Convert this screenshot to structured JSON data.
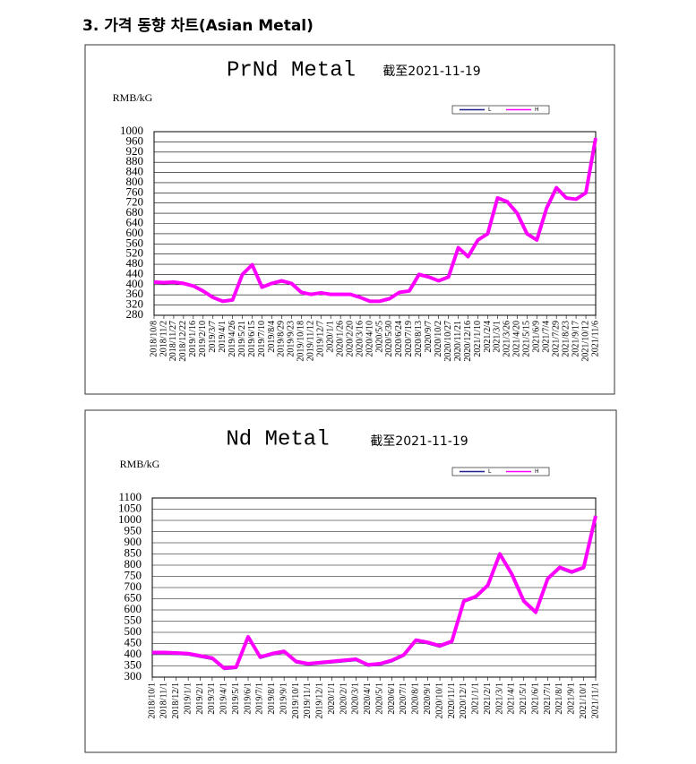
{
  "heading": "3. 가격 동향 차트(Asian Metal)",
  "chart_data": [
    {
      "type": "line",
      "title": "PrNd Metal",
      "subtitle": "截至2021-11-19",
      "y_label": "RMB/kG",
      "categories": [
        "2018/10/8",
        "2018/11/2",
        "2018/11/27",
        "2018/12/22",
        "2019/1/16",
        "2019/2/10",
        "2019/3/7",
        "2019/4/1",
        "2019/4/26",
        "2019/5/21",
        "2019/6/15",
        "2019/7/10",
        "2019/8/4",
        "2019/8/29",
        "2019/9/23",
        "2019/10/18",
        "2019/11/12",
        "2019/12/7",
        "2020/1/1",
        "2020/1/26",
        "2020/2/20",
        "2020/3/16",
        "2020/4/10",
        "2020/5/5",
        "2020/5/30",
        "2020/6/24",
        "2020/7/19",
        "2020/8/13",
        "2020/9/7",
        "2020/10/2",
        "2020/10/27",
        "2020/11/21",
        "2020/12/16",
        "2021/1/10",
        "2021/2/4",
        "2021/3/1",
        "2021/3/26",
        "2021/4/20",
        "2021/5/15",
        "2021/6/9",
        "2021/7/4",
        "2021/7/29",
        "2021/8/23",
        "2021/9/17",
        "2021/10/12",
        "2021/11/6"
      ],
      "series": [
        {
          "name": "L",
          "color": "#1f1f8f",
          "values": [
            408,
            406,
            408,
            403,
            393,
            373,
            348,
            333,
            338,
            438,
            476,
            388,
            403,
            413,
            403,
            368,
            360,
            366,
            360,
            360,
            360,
            348,
            333,
            333,
            343,
            368,
            373,
            438,
            428,
            413,
            428,
            543,
            508,
            573,
            598,
            738,
            723,
            678,
            598,
            573,
            698,
            778,
            738,
            733,
            758,
            965
          ]
        },
        {
          "name": "H",
          "color": "#ff00ff",
          "values": [
            410,
            408,
            410,
            405,
            395,
            375,
            350,
            335,
            340,
            440,
            478,
            390,
            405,
            415,
            405,
            370,
            362,
            368,
            362,
            362,
            362,
            350,
            335,
            335,
            345,
            370,
            375,
            440,
            430,
            415,
            430,
            545,
            510,
            575,
            600,
            740,
            725,
            680,
            600,
            575,
            700,
            780,
            740,
            735,
            760,
            975
          ]
        }
      ],
      "ylim": [
        280,
        1000
      ],
      "yticks": [
        280,
        320,
        360,
        400,
        440,
        480,
        520,
        560,
        600,
        640,
        680,
        720,
        760,
        800,
        840,
        880,
        920,
        960,
        1000
      ],
      "grid": true
    },
    {
      "type": "line",
      "title": "Nd Metal",
      "subtitle": "截至2021-11-19",
      "y_label": "RMB/kG",
      "categories": [
        "2018/10/1",
        "2018/11/1",
        "2018/12/1",
        "2019/1/1",
        "2019/2/1",
        "2019/3/1",
        "2019/4/1",
        "2019/5/1",
        "2019/6/1",
        "2019/7/1",
        "2019/8/1",
        "2019/9/1",
        "2019/10/1",
        "2019/11/1",
        "2019/12/1",
        "2020/1/1",
        "2020/2/1",
        "2020/3/1",
        "2020/4/1",
        "2020/5/1",
        "2020/6/1",
        "2020/7/1",
        "2020/8/1",
        "2020/9/1",
        "2020/10/1",
        "2020/11/1",
        "2020/12/1",
        "2021/1/1",
        "2021/2/1",
        "2021/3/1",
        "2021/4/1",
        "2021/5/1",
        "2021/6/1",
        "2021/7/1",
        "2021/8/1",
        "2021/9/1",
        "2021/10/1",
        "2021/11/1"
      ],
      "series": [
        {
          "name": "L",
          "color": "#1f1f8f",
          "values": [
            405,
            405,
            403,
            400,
            390,
            380,
            335,
            340,
            475,
            385,
            400,
            410,
            365,
            355,
            360,
            365,
            370,
            375,
            350,
            355,
            370,
            395,
            460,
            450,
            435,
            455,
            635,
            655,
            705,
            845,
            755,
            635,
            585,
            735,
            785,
            765,
            785,
            1010
          ]
        },
        {
          "name": "H",
          "color": "#ff00ff",
          "values": [
            410,
            410,
            408,
            405,
            395,
            385,
            340,
            345,
            480,
            390,
            405,
            415,
            370,
            360,
            365,
            370,
            375,
            380,
            355,
            360,
            375,
            400,
            465,
            455,
            440,
            460,
            640,
            660,
            710,
            850,
            760,
            640,
            590,
            740,
            790,
            770,
            790,
            1020
          ]
        }
      ],
      "ylim": [
        300,
        1100
      ],
      "yticks": [
        300,
        350,
        400,
        450,
        500,
        550,
        600,
        650,
        700,
        750,
        800,
        850,
        900,
        950,
        1000,
        1050,
        1100
      ],
      "grid": true
    }
  ]
}
